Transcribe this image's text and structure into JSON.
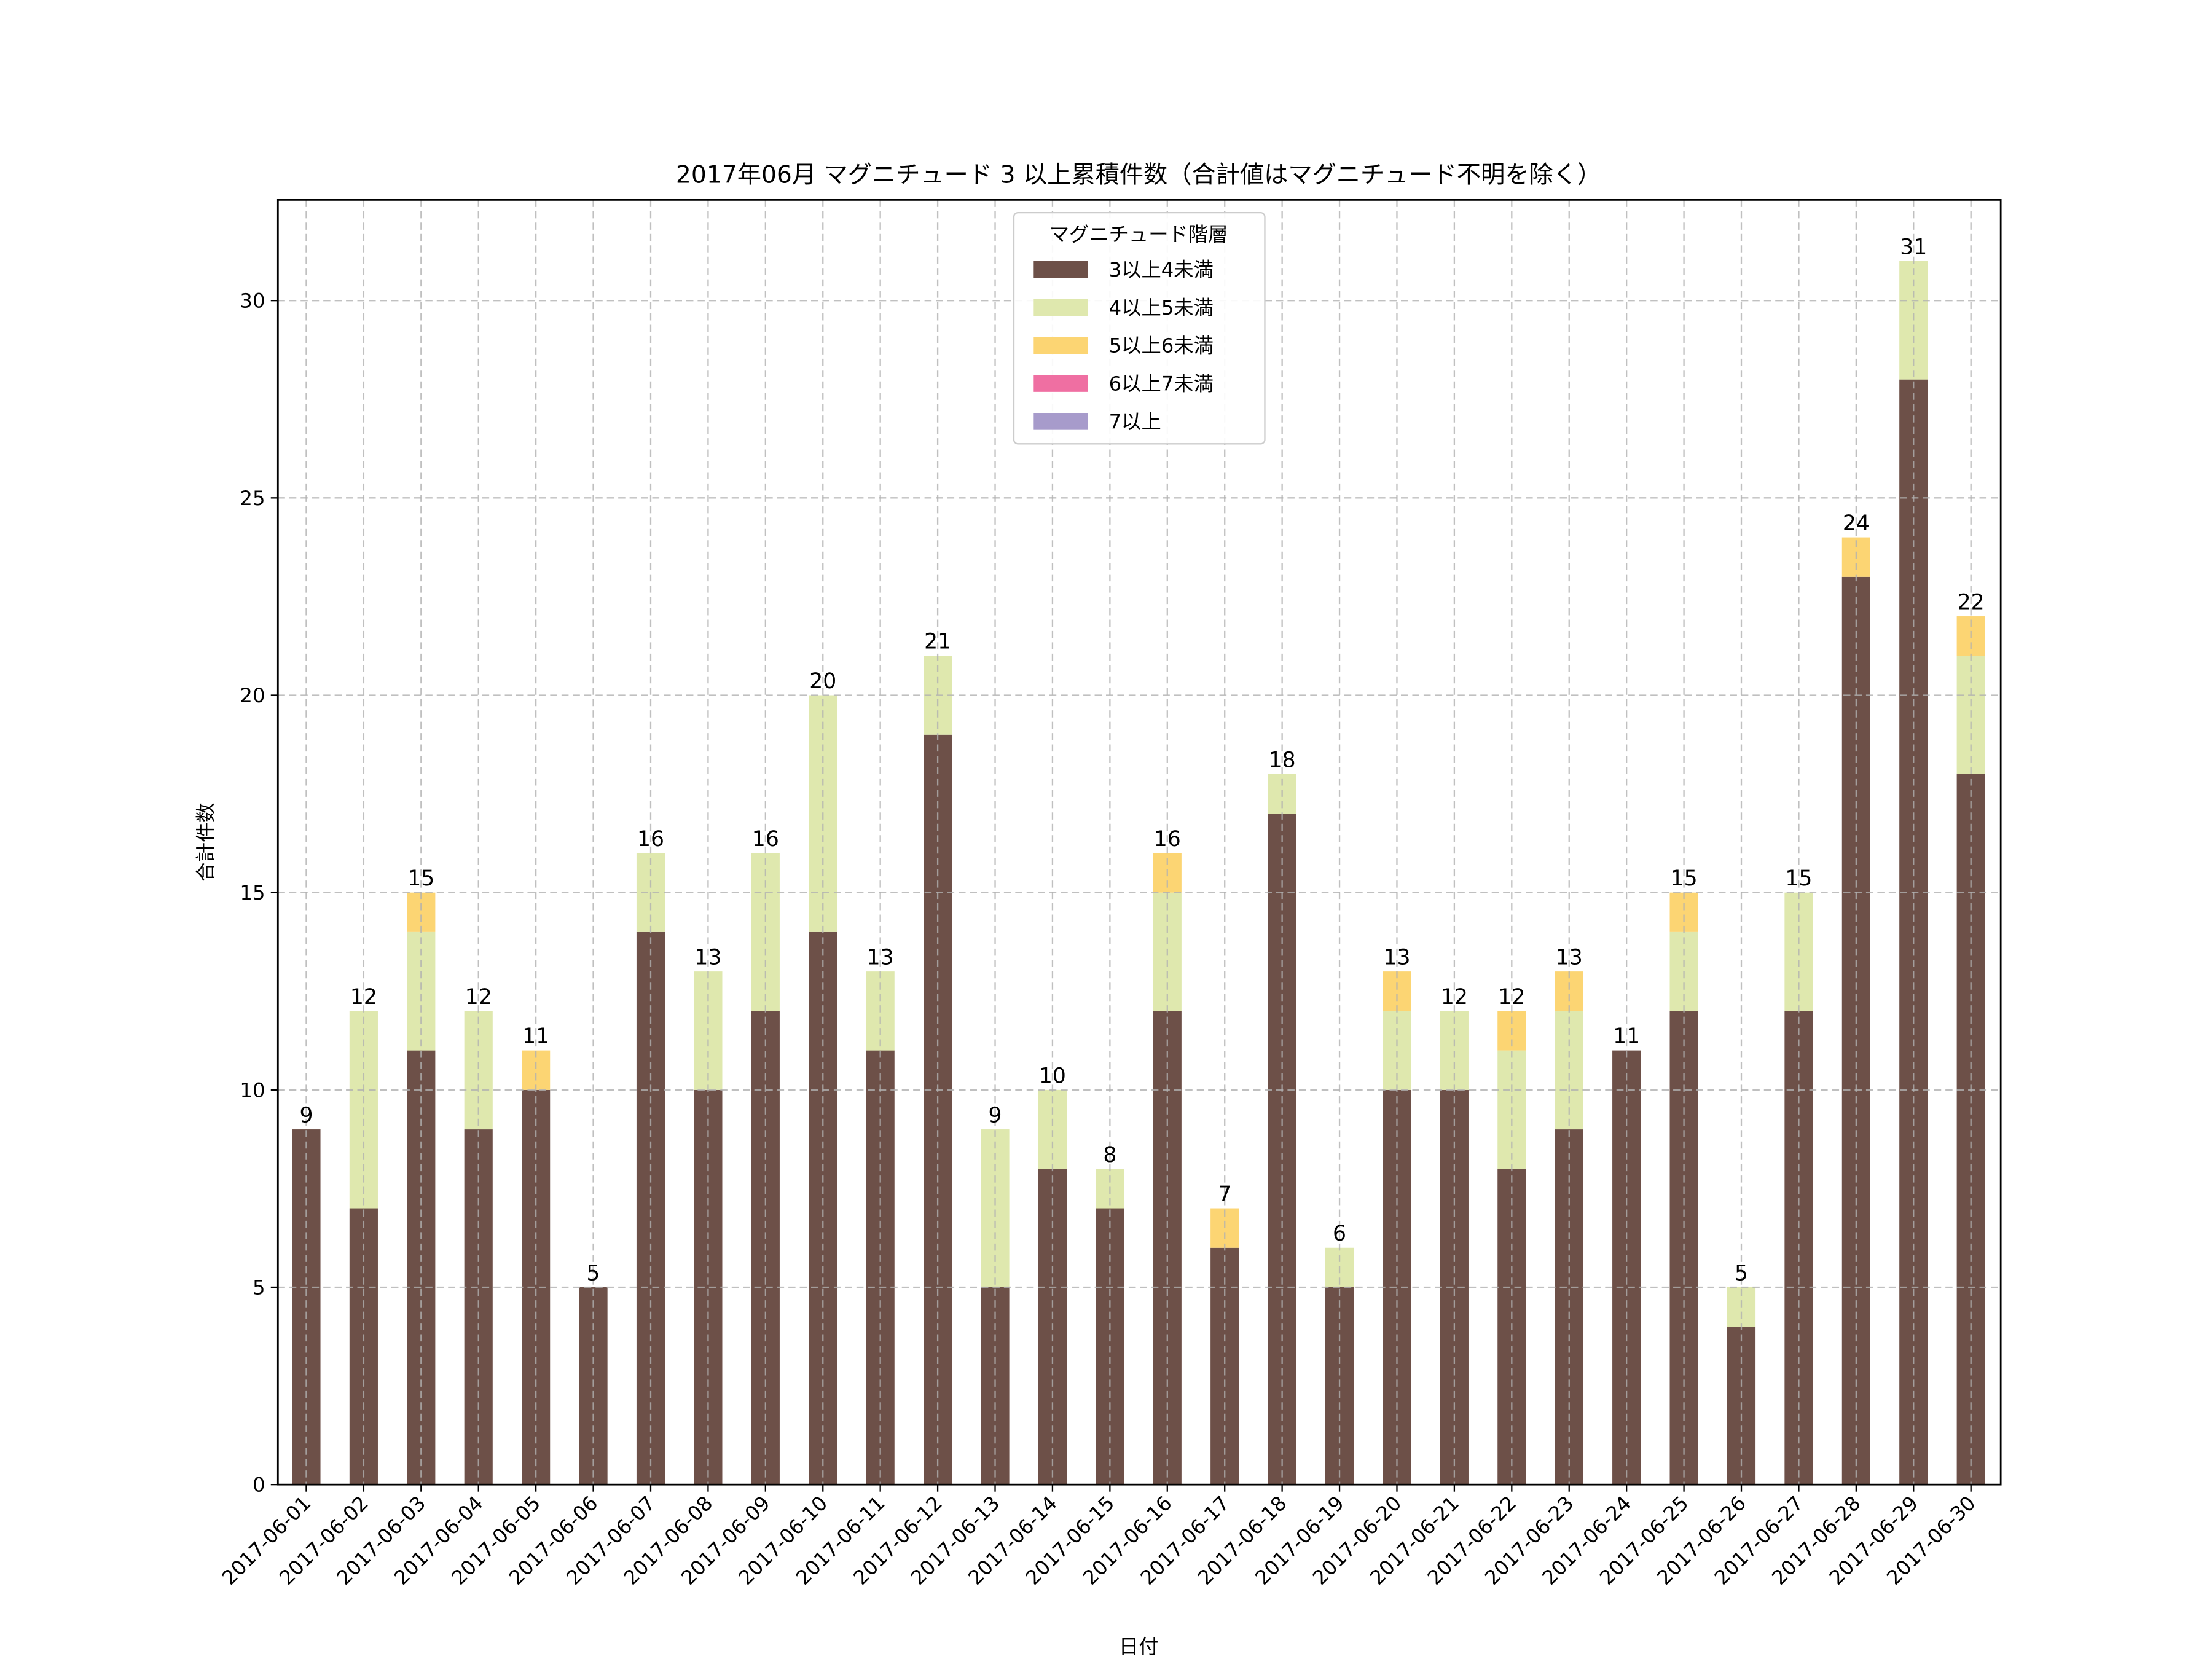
{
  "chart_data": {
    "type": "bar",
    "stacked": true,
    "title": "2017年06月 マグニチュード 3 以上累積件数（合計値はマグニチュード不明を除く）",
    "xlabel": "日付",
    "ylabel": "合計件数",
    "ylim": [
      0,
      32.55
    ],
    "yticks": [
      0,
      5,
      10,
      15,
      20,
      25,
      30
    ],
    "grid": true,
    "legend": {
      "title": "マグニチュード階層",
      "placement": "upper-center"
    },
    "categories": [
      "2017-06-01",
      "2017-06-02",
      "2017-06-03",
      "2017-06-04",
      "2017-06-05",
      "2017-06-06",
      "2017-06-07",
      "2017-06-08",
      "2017-06-09",
      "2017-06-10",
      "2017-06-11",
      "2017-06-12",
      "2017-06-13",
      "2017-06-14",
      "2017-06-15",
      "2017-06-16",
      "2017-06-17",
      "2017-06-18",
      "2017-06-19",
      "2017-06-20",
      "2017-06-21",
      "2017-06-22",
      "2017-06-23",
      "2017-06-24",
      "2017-06-25",
      "2017-06-26",
      "2017-06-27",
      "2017-06-28",
      "2017-06-29",
      "2017-06-30"
    ],
    "series": [
      {
        "name": "3以上4未満",
        "color": "#6d5048",
        "values": [
          9,
          7,
          11,
          9,
          10,
          5,
          14,
          10,
          12,
          14,
          11,
          19,
          5,
          8,
          7,
          12,
          6,
          17,
          5,
          10,
          10,
          8,
          9,
          11,
          12,
          4,
          12,
          23,
          28,
          18
        ]
      },
      {
        "name": "4以上5未満",
        "color": "#dfe8ae",
        "values": [
          0,
          5,
          3,
          3,
          0,
          0,
          2,
          3,
          4,
          6,
          2,
          2,
          4,
          2,
          1,
          3,
          0,
          1,
          1,
          2,
          2,
          3,
          3,
          0,
          2,
          1,
          3,
          0,
          3,
          3
        ]
      },
      {
        "name": "5以上6未満",
        "color": "#fcd573",
        "values": [
          0,
          0,
          1,
          0,
          1,
          0,
          0,
          0,
          0,
          0,
          0,
          0,
          0,
          0,
          0,
          1,
          1,
          0,
          0,
          1,
          0,
          1,
          1,
          0,
          1,
          0,
          0,
          1,
          0,
          1
        ]
      },
      {
        "name": "6以上7未満",
        "color": "#ef6fa2",
        "values": [
          0,
          0,
          0,
          0,
          0,
          0,
          0,
          0,
          0,
          0,
          0,
          0,
          0,
          0,
          0,
          0,
          0,
          0,
          0,
          0,
          0,
          0,
          0,
          0,
          0,
          0,
          0,
          0,
          0,
          0
        ]
      },
      {
        "name": "7以上",
        "color": "#a79bcb",
        "values": [
          0,
          0,
          0,
          0,
          0,
          0,
          0,
          0,
          0,
          0,
          0,
          0,
          0,
          0,
          0,
          0,
          0,
          0,
          0,
          0,
          0,
          0,
          0,
          0,
          0,
          0,
          0,
          0,
          0,
          0
        ]
      }
    ],
    "totals": [
      9,
      12,
      15,
      12,
      11,
      5,
      16,
      13,
      16,
      20,
      13,
      21,
      9,
      10,
      8,
      16,
      7,
      18,
      6,
      13,
      12,
      12,
      13,
      11,
      15,
      5,
      15,
      24,
      31,
      22
    ]
  }
}
